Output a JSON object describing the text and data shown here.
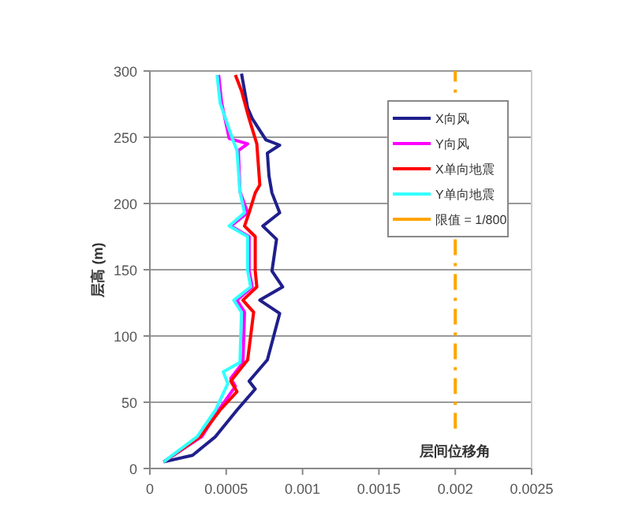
{
  "chart_data": {
    "type": "line",
    "ylabel": "层高 (m)",
    "xlim": [
      0,
      0.0025
    ],
    "ylim": [
      0,
      300
    ],
    "xticks": [
      0,
      0.0005,
      0.001,
      0.0015,
      0.002,
      0.0025
    ],
    "yticks": [
      0,
      50,
      100,
      150,
      200,
      250,
      300
    ],
    "grid": "y",
    "legend": "top right",
    "annotations": [
      "层间位移角"
    ],
    "series": [
      {
        "name": "X向风",
        "color": "#1f1f8c",
        "x": [
          9e-05,
          0.00028,
          0.00043,
          0.00057,
          0.00069,
          0.00065,
          0.00077,
          0.00085,
          0.00072,
          0.00087,
          0.0008,
          0.00083,
          0.00074,
          0.00085,
          0.0008,
          0.00078,
          0.00077,
          0.00085,
          0.00076,
          0.00067,
          0.00064,
          0.0006
        ],
        "values": [
          5,
          10,
          24,
          44,
          60,
          66,
          82,
          117,
          127,
          137,
          149,
          173,
          183,
          193,
          208,
          221,
          238,
          244,
          248,
          264,
          272,
          298
        ]
      },
      {
        "name": "Y向风",
        "color": "#ff00ff",
        "x": [
          9e-05,
          0.00034,
          0.00045,
          0.00056,
          0.00053,
          0.00061,
          0.00062,
          0.00057,
          0.00067,
          0.00065,
          0.00065,
          0.00053,
          0.00064,
          0.00059,
          0.00058,
          0.00064,
          0.00052,
          0.00047,
          0.00045
        ],
        "values": [
          5,
          24,
          44,
          62,
          68,
          80,
          118,
          127,
          137,
          149,
          175,
          183,
          193,
          209,
          240,
          245,
          249,
          276,
          297
        ]
      },
      {
        "name": "X单向地震",
        "color": "#ff0000",
        "x": [
          9e-05,
          0.00033,
          0.00046,
          0.00057,
          0.00053,
          0.00064,
          0.00068,
          0.00061,
          0.0007,
          0.00069,
          0.00069,
          0.00062,
          0.00065,
          0.00069,
          0.00072,
          0.0007,
          0.00065,
          0.0006,
          0.00056
        ],
        "values": [
          5,
          24,
          44,
          58,
          66,
          82,
          118,
          127,
          137,
          149,
          175,
          183,
          193,
          208,
          214,
          245,
          264,
          285,
          297
        ]
      },
      {
        "name": "Y单向地震",
        "color": "#33ffff",
        "x": [
          9e-05,
          0.00031,
          0.00043,
          0.00051,
          0.00048,
          0.00059,
          0.0006,
          0.00055,
          0.00066,
          0.00064,
          0.00064,
          0.00052,
          0.00062,
          0.00059,
          0.00057,
          0.00054,
          0.00046,
          0.00044
        ],
        "values": [
          5,
          24,
          44,
          64,
          73,
          80,
          118,
          127,
          137,
          149,
          175,
          183,
          193,
          209,
          240,
          249,
          276,
          297
        ]
      },
      {
        "name": "限值 = 1/800",
        "color": "#ffa500",
        "line_style": "dashdot",
        "x": [
          0.002,
          0.002
        ],
        "values": [
          30,
          300
        ]
      }
    ]
  }
}
